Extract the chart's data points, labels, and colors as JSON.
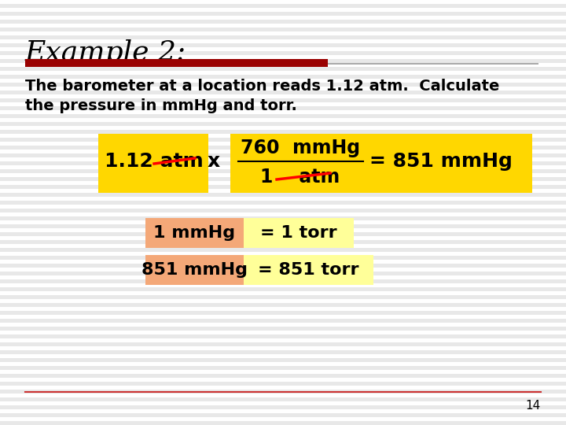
{
  "title": "Example 2:",
  "title_fontsize": 26,
  "body_text_line1": "The barometer at a location reads 1.12 atm.  Calculate",
  "body_text_line2": "the pressure in mmHg and torr.",
  "body_fontsize": 14,
  "white_bg": "#ffffff",
  "stripe_color": "#e8e8e8",
  "red_line_color": "#990000",
  "thin_line_color": "#aaaaaa",
  "page_number": "14",
  "yellow_box_color": "#FFD700",
  "salmon_box_color": "#F4A878",
  "light_yellow_color": "#FFFF99",
  "bottom_line_color": "#cc3333"
}
